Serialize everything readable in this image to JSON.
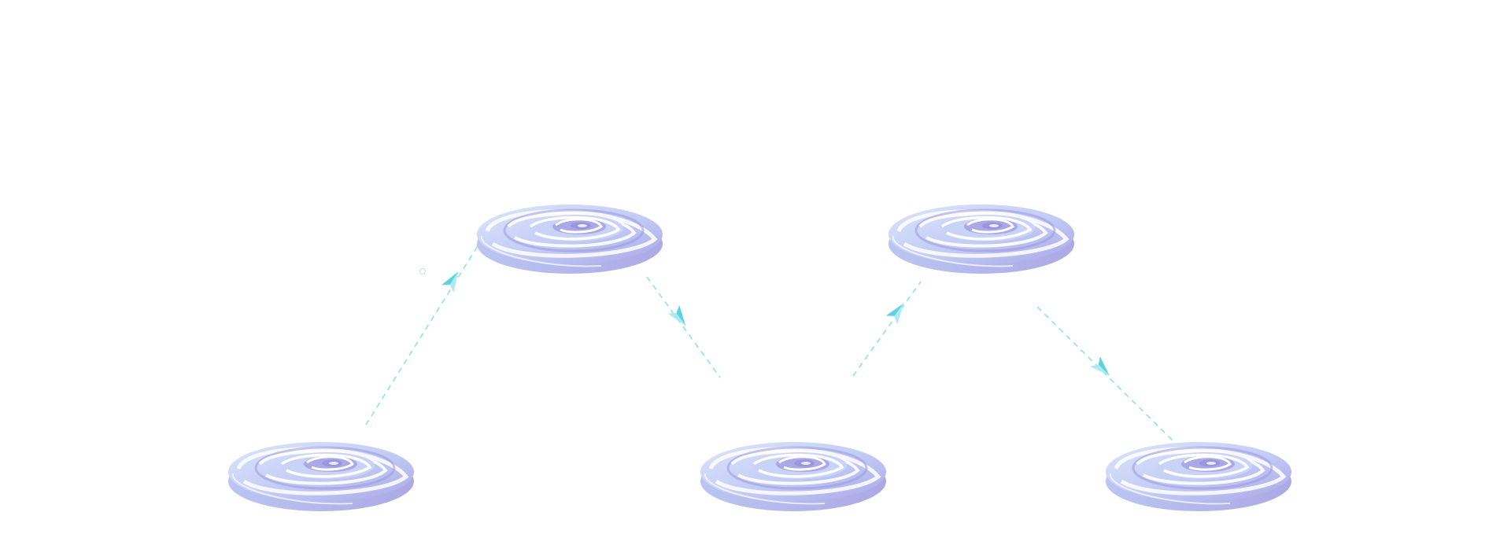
{
  "diagram": {
    "nodes": [
      {
        "id": "portal-1",
        "kind": "swirl-portal-icon"
      },
      {
        "id": "portal-2",
        "kind": "swirl-portal-icon"
      },
      {
        "id": "portal-3",
        "kind": "swirl-portal-icon"
      },
      {
        "id": "portal-4",
        "kind": "swirl-portal-icon"
      },
      {
        "id": "portal-5",
        "kind": "swirl-portal-icon"
      }
    ],
    "edges": [
      {
        "from": "portal-1",
        "to": "portal-2",
        "style": "dashed",
        "arrow": "paper-plane-icon"
      },
      {
        "from": "portal-2",
        "to": "portal-3",
        "style": "dashed",
        "arrow": "paper-plane-icon"
      },
      {
        "from": "portal-3",
        "to": "portal-4",
        "style": "dashed",
        "arrow": "paper-plane-icon"
      },
      {
        "from": "portal-4",
        "to": "portal-5",
        "style": "dashed",
        "arrow": "paper-plane-icon"
      }
    ],
    "colors": {
      "portal_light": "#dbe6fb",
      "portal_mid": "#b9c4f3",
      "portal_dark": "#a9a6e6",
      "connector": "#8fe0ec",
      "arrow": "#5fd2e2",
      "arrow_light": "#a6ecf4"
    }
  }
}
